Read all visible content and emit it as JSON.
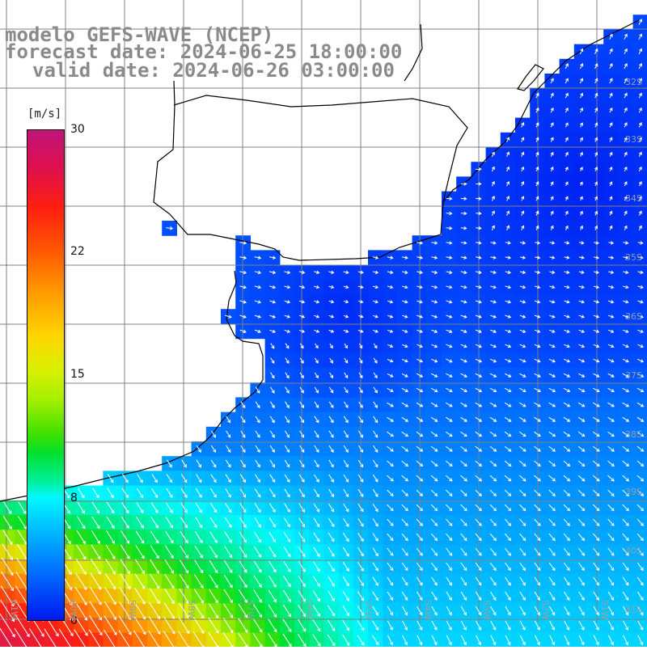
{
  "title": {
    "line1": "modelo GEFS-WAVE (NCEP)",
    "line2": "forecast date: 2024-06-25 18:00:00",
    "line3": "valid date: 2024-06-26 03:00:00"
  },
  "colorbar": {
    "unit": "[m/s]",
    "ticks": [
      "30",
      "22",
      "15",
      "8",
      "0"
    ]
  },
  "lat_labels": [
    "32S",
    "33S",
    "34S",
    "35S",
    "36S",
    "37S",
    "38S",
    "39S",
    "40S",
    "41S"
  ],
  "lon_labels": [
    "61W",
    "60W",
    "59W",
    "58W",
    "57W",
    "56W",
    "55W",
    "54W",
    "53W",
    "52W",
    "51W"
  ],
  "colors": {
    "land": "#ffffff",
    "grid": "#808080",
    "coast": "#000000",
    "arrow": "#ffffff",
    "title": "#8a8a8a"
  }
}
